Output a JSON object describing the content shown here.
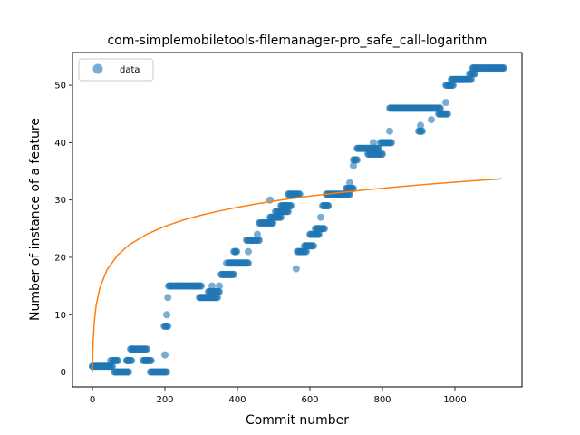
{
  "chart_data": {
    "type": "scatter",
    "title": "com-simplemobiletools-filemanager-pro_safe_call-logarithm",
    "xlabel": "Commit number",
    "ylabel": "Number of instance of a feature",
    "xlim": [
      -55,
      1185
    ],
    "ylim": [
      -2.6,
      55.7
    ],
    "xticks": [
      0,
      200,
      400,
      600,
      800,
      1000
    ],
    "yticks": [
      0,
      10,
      20,
      30,
      40,
      50
    ],
    "grid": false,
    "legend": {
      "placement": "top-left",
      "entries": [
        "data"
      ]
    },
    "colors": {
      "data": "#1f77b4",
      "fit": "#ff7f0e"
    },
    "series": [
      {
        "name": "data",
        "kind": "scatter",
        "segments": [
          [
            0,
            1,
            45,
            1
          ],
          [
            45,
            1,
            55,
            1
          ],
          [
            55,
            2,
            70,
            2
          ],
          [
            60,
            0,
            100,
            0
          ],
          [
            95,
            2,
            108,
            2
          ],
          [
            105,
            4,
            150,
            4
          ],
          [
            140,
            2,
            162,
            2
          ],
          [
            160,
            0,
            205,
            0
          ],
          [
            198,
            8,
            208,
            8
          ],
          [
            210,
            15,
            300,
            15
          ],
          [
            295,
            13,
            345,
            13
          ],
          [
            320,
            14,
            350,
            14
          ],
          [
            355,
            17,
            390,
            17
          ],
          [
            390,
            21,
            398,
            21
          ],
          [
            375,
            19,
            430,
            19
          ],
          [
            425,
            23,
            460,
            23
          ],
          [
            460,
            26,
            498,
            26
          ],
          [
            490,
            27,
            520,
            27
          ],
          [
            505,
            28,
            540,
            28
          ],
          [
            520,
            29,
            548,
            29
          ],
          [
            540,
            31,
            572,
            31
          ],
          [
            565,
            21,
            590,
            21
          ],
          [
            585,
            22,
            610,
            22
          ],
          [
            600,
            24,
            625,
            24
          ],
          [
            615,
            25,
            640,
            25
          ],
          [
            635,
            29,
            650,
            29
          ],
          [
            645,
            31,
            710,
            31
          ],
          [
            700,
            32,
            720,
            32
          ],
          [
            720,
            37,
            730,
            37
          ],
          [
            730,
            39,
            790,
            39
          ],
          [
            760,
            38,
            800,
            38
          ],
          [
            795,
            40,
            825,
            40
          ],
          [
            820,
            46,
            960,
            46
          ],
          [
            900,
            42,
            910,
            42
          ],
          [
            955,
            45,
            980,
            45
          ],
          [
            975,
            50,
            995,
            50
          ],
          [
            990,
            51,
            1045,
            51
          ],
          [
            1040,
            52,
            1055,
            52
          ],
          [
            1050,
            53,
            1135,
            53
          ]
        ],
        "points": [
          [
            0,
            1
          ],
          [
            50,
            2
          ],
          [
            95,
            2
          ],
          [
            110,
            4
          ],
          [
            150,
            2
          ],
          [
            200,
            3
          ],
          [
            205,
            10
          ],
          [
            208,
            13
          ],
          [
            280,
            15
          ],
          [
            330,
            15
          ],
          [
            350,
            15
          ],
          [
            370,
            19
          ],
          [
            395,
            21
          ],
          [
            430,
            21
          ],
          [
            440,
            23
          ],
          [
            455,
            24
          ],
          [
            470,
            26
          ],
          [
            490,
            30
          ],
          [
            530,
            29
          ],
          [
            560,
            31
          ],
          [
            562,
            18
          ],
          [
            575,
            21
          ],
          [
            620,
            24
          ],
          [
            630,
            27
          ],
          [
            650,
            29
          ],
          [
            700,
            31
          ],
          [
            710,
            33
          ],
          [
            720,
            36
          ],
          [
            770,
            38
          ],
          [
            775,
            40
          ],
          [
            820,
            42
          ],
          [
            905,
            43
          ],
          [
            935,
            44
          ],
          [
            975,
            47
          ],
          [
            1000,
            51
          ],
          [
            1020,
            51
          ],
          [
            1050,
            53
          ],
          [
            1100,
            53
          ],
          [
            1130,
            53
          ]
        ]
      },
      {
        "kind": "line",
        "formula": "y = 4.79 * ln(1 + x)",
        "x": [
          0,
          1,
          2,
          5,
          10,
          20,
          40,
          70,
          100,
          150,
          200,
          250,
          300,
          350,
          400,
          450,
          500,
          550,
          600,
          650,
          700,
          750,
          800,
          850,
          900,
          950,
          1000,
          1050,
          1100,
          1130
        ],
        "y": [
          0.0,
          3.32,
          5.26,
          8.58,
          11.49,
          14.58,
          17.79,
          20.42,
          22.11,
          24.03,
          25.41,
          26.48,
          27.35,
          28.09,
          28.73,
          29.3,
          29.8,
          30.26,
          30.68,
          31.06,
          31.42,
          31.75,
          32.05,
          32.34,
          32.61,
          32.87,
          33.11,
          33.35,
          33.57,
          33.7
        ]
      }
    ]
  }
}
